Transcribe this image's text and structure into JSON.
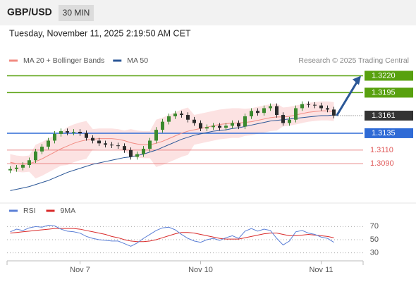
{
  "header": {
    "symbol": "GBP/USD",
    "interval": "30 MIN"
  },
  "timestamp": "Tuesday, November 11, 2025 2:19:50 AM CET",
  "source": "Research © 2025 Trading Central",
  "chart_data": [
    {
      "type": "candlestick",
      "categories": [
        null,
        null,
        null,
        null,
        null,
        null,
        null,
        null,
        null,
        null,
        null,
        "Nov 7",
        null,
        null,
        null,
        null,
        null,
        null,
        null,
        null,
        null,
        null,
        null,
        null,
        null,
        null,
        null,
        null,
        null,
        null,
        "Nov 10",
        null,
        null,
        null,
        null,
        null,
        null,
        null,
        null,
        null,
        null,
        null,
        null,
        null,
        null,
        null,
        null,
        null,
        null,
        "Nov 11",
        null,
        null
      ],
      "open": [
        1.308,
        1.3082,
        1.3084,
        1.3088,
        1.3095,
        1.3108,
        1.3115,
        1.3124,
        1.3134,
        1.3138,
        1.3136,
        1.3137,
        1.3135,
        1.3128,
        1.3124,
        1.312,
        1.3118,
        1.3117,
        1.3116,
        1.311,
        1.31,
        1.3104,
        1.3112,
        1.3124,
        1.314,
        1.3152,
        1.316,
        1.3164,
        1.3162,
        1.3155,
        1.315,
        1.3142,
        1.3144,
        1.3146,
        1.3143,
        1.3146,
        1.315,
        1.3145,
        1.316,
        1.3168,
        1.3165,
        1.3172,
        1.3175,
        1.3162,
        1.315,
        1.3155,
        1.3172,
        1.3178,
        1.3177,
        1.3176,
        1.3172,
        1.317
      ],
      "high": [
        1.3086,
        1.3088,
        1.3092,
        1.3099,
        1.3112,
        1.3119,
        1.3128,
        1.3138,
        1.3142,
        1.3142,
        1.3141,
        1.3141,
        1.3139,
        1.3132,
        1.3128,
        1.3124,
        1.3122,
        1.3121,
        1.312,
        1.3114,
        1.3108,
        1.3116,
        1.3128,
        1.3144,
        1.3156,
        1.3164,
        1.3168,
        1.3168,
        1.3166,
        1.3159,
        1.3154,
        1.3148,
        1.315,
        1.315,
        1.315,
        1.3154,
        1.3154,
        1.3164,
        1.3172,
        1.3172,
        1.3176,
        1.3179,
        1.3179,
        1.3166,
        1.3159,
        1.3176,
        1.3182,
        1.3182,
        1.3181,
        1.318,
        1.3176,
        1.3174
      ],
      "low": [
        1.3076,
        1.3078,
        1.308,
        1.3084,
        1.3091,
        1.3104,
        1.3111,
        1.312,
        1.313,
        1.3132,
        1.3132,
        1.3131,
        1.3124,
        1.312,
        1.3116,
        1.3114,
        1.3113,
        1.3112,
        1.3106,
        1.3096,
        1.3096,
        1.31,
        1.3108,
        1.312,
        1.3136,
        1.3148,
        1.3156,
        1.3158,
        1.3151,
        1.3146,
        1.3138,
        1.3138,
        1.314,
        1.3139,
        1.3139,
        1.3142,
        1.3141,
        1.3141,
        1.3156,
        1.3161,
        1.3161,
        1.3168,
        1.3158,
        1.3146,
        1.3146,
        1.3151,
        1.3168,
        1.3173,
        1.3172,
        1.3168,
        1.3166,
        1.3157
      ],
      "close": [
        1.3082,
        1.3084,
        1.3088,
        1.3095,
        1.3108,
        1.3115,
        1.3124,
        1.3134,
        1.3138,
        1.3136,
        1.3137,
        1.3135,
        1.3128,
        1.3124,
        1.312,
        1.3118,
        1.3117,
        1.3116,
        1.311,
        1.31,
        1.3104,
        1.3112,
        1.3124,
        1.314,
        1.3152,
        1.316,
        1.3164,
        1.3162,
        1.3155,
        1.315,
        1.3142,
        1.3144,
        1.3146,
        1.3143,
        1.3146,
        1.315,
        1.3145,
        1.316,
        1.3168,
        1.3165,
        1.3172,
        1.3175,
        1.3162,
        1.315,
        1.3155,
        1.3172,
        1.3178,
        1.3177,
        1.3176,
        1.3172,
        1.317,
        1.3161
      ],
      "up_color": "#3c8a2e",
      "down_color": "#2b2b2b",
      "band_color": "#fbd5d5",
      "series": [
        {
          "name": "MA 20 + Bollinger Bands",
          "color": "#f28b82",
          "values": [
            1.3092,
            1.309,
            1.3089,
            1.309,
            1.3093,
            1.3097,
            1.3102,
            1.3107,
            1.3112,
            1.3116,
            1.312,
            1.3123,
            1.3125,
            1.3126,
            1.3127,
            1.3127,
            1.3127,
            1.3126,
            1.3124,
            1.3121,
            1.3119,
            1.3118,
            1.3118,
            1.312,
            1.3123,
            1.3127,
            1.3131,
            1.3135,
            1.3138,
            1.314,
            1.3142,
            1.3144,
            1.3146,
            1.3148,
            1.3149,
            1.315,
            1.315,
            1.3151,
            1.3152,
            1.3154,
            1.3156,
            1.3158,
            1.3159,
            1.3159,
            1.316,
            1.3162,
            1.3164,
            1.3166,
            1.3167,
            1.3168,
            1.3168,
            1.3167
          ],
          "band_upper": [
            1.3104,
            1.3102,
            1.3101,
            1.3102,
            1.3118,
            1.3122,
            1.3127,
            1.3132,
            1.3137,
            1.3144,
            1.3148,
            1.3151,
            1.3153,
            1.3141,
            1.3142,
            1.3142,
            1.3142,
            1.3141,
            1.3139,
            1.3141,
            1.3139,
            1.3138,
            1.3138,
            1.3155,
            1.3158,
            1.3162,
            1.3166,
            1.317,
            1.3173,
            1.3162,
            1.3164,
            1.3166,
            1.3168,
            1.317,
            1.3171,
            1.3172,
            1.3172,
            1.3171,
            1.3172,
            1.3174,
            1.3176,
            1.3178,
            1.3179,
            1.3173,
            1.3174,
            1.3176,
            1.3178,
            1.318,
            1.3181,
            1.3182,
            1.3182,
            1.3181
          ],
          "band_lower": [
            1.308,
            1.3078,
            1.3077,
            1.3078,
            1.3068,
            1.3072,
            1.3077,
            1.3082,
            1.3087,
            1.3088,
            1.3092,
            1.3095,
            1.3097,
            1.3111,
            1.3112,
            1.3112,
            1.3112,
            1.3111,
            1.3109,
            1.3101,
            1.3099,
            1.3098,
            1.3098,
            1.3085,
            1.3088,
            1.3092,
            1.3096,
            1.31,
            1.3103,
            1.3118,
            1.312,
            1.3122,
            1.3124,
            1.3126,
            1.3127,
            1.3128,
            1.3128,
            1.3131,
            1.3132,
            1.3134,
            1.3136,
            1.3138,
            1.3139,
            1.3145,
            1.3146,
            1.3148,
            1.315,
            1.3152,
            1.3153,
            1.3154,
            1.3154,
            1.3153
          ]
        },
        {
          "name": "MA 50",
          "color": "#2b5797",
          "values": [
            1.305,
            1.3052,
            1.3054,
            1.3056,
            1.3059,
            1.3062,
            1.3065,
            1.3069,
            1.3073,
            1.3077,
            1.308,
            1.3083,
            1.3086,
            1.3089,
            1.3091,
            1.3093,
            1.3095,
            1.3097,
            1.3099,
            1.31,
            1.3102,
            1.3104,
            1.3107,
            1.311,
            1.3114,
            1.3118,
            1.3122,
            1.3126,
            1.3129,
            1.3132,
            1.3134,
            1.3136,
            1.3138,
            1.3139,
            1.314,
            1.3142,
            1.3143,
            1.3145,
            1.3147,
            1.3149,
            1.3151,
            1.3153,
            1.3154,
            1.3155,
            1.3156,
            1.3157,
            1.3158,
            1.3159,
            1.316,
            1.3161,
            1.3161,
            1.3162
          ]
        }
      ],
      "levels": [
        {
          "value": 1.322,
          "label": "1.3220",
          "color": "#58a10f",
          "style": "box"
        },
        {
          "value": 1.3195,
          "label": "1.3195",
          "color": "#58a10f",
          "style": "box"
        },
        {
          "value": 1.3161,
          "label": "1.3161",
          "color": "#333333",
          "style": "last"
        },
        {
          "value": 1.3135,
          "label": "1.3135",
          "color": "#2f6bd6",
          "style": "box"
        },
        {
          "value": 1.311,
          "label": "1.3110",
          "color": "#e05a5a",
          "style": "text"
        },
        {
          "value": 1.309,
          "label": "1.3090",
          "color": "#e05a5a",
          "style": "text"
        }
      ],
      "arrow_color": "#2b5797",
      "ylim": [
        1.304,
        1.3233
      ]
    },
    {
      "type": "line",
      "series": [
        {
          "name": "RSI",
          "color": "#5b7fd6",
          "values": [
            62,
            66,
            64,
            68,
            70,
            69,
            72,
            71,
            66,
            63,
            62,
            60,
            55,
            52,
            50,
            49,
            48,
            48,
            44,
            40,
            45,
            52,
            58,
            64,
            68,
            69,
            65,
            58,
            52,
            48,
            46,
            50,
            52,
            49,
            53,
            56,
            52,
            63,
            67,
            63,
            66,
            64,
            52,
            42,
            48,
            62,
            64,
            60,
            58,
            54,
            52,
            46
          ]
        },
        {
          "name": "9MA",
          "color": "#d92a2a",
          "values": [
            60,
            61,
            62,
            63,
            64,
            65,
            66,
            67,
            67,
            67,
            67,
            66,
            64,
            62,
            60,
            58,
            55,
            53,
            50,
            48,
            47,
            47,
            48,
            50,
            53,
            56,
            59,
            61,
            61,
            60,
            58,
            56,
            54,
            52,
            51,
            51,
            51,
            53,
            55,
            57,
            59,
            60,
            60,
            58,
            56,
            56,
            57,
            58,
            57,
            56,
            55,
            53
          ]
        }
      ],
      "ylim": [
        20,
        80
      ],
      "yticks": [
        70,
        50,
        30
      ],
      "grid": true
    }
  ]
}
